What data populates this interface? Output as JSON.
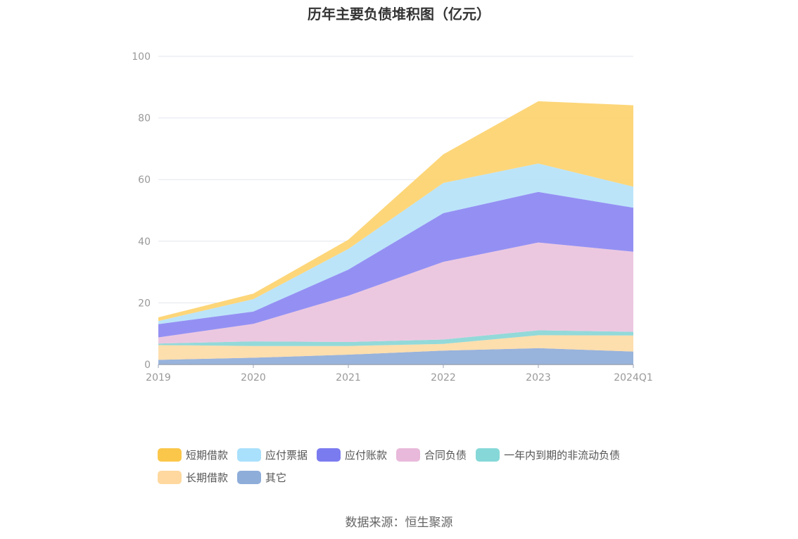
{
  "title": "历年主要负债堆积图（亿元）",
  "source": "数据来源：恒生聚源",
  "chart_data": {
    "type": "area",
    "stacked": true,
    "categories": [
      "2019",
      "2020",
      "2021",
      "2022",
      "2023",
      "2024Q1"
    ],
    "ylim": [
      0,
      100
    ],
    "yticks": [
      0,
      20,
      40,
      60,
      80,
      100
    ],
    "grid": true,
    "legend_position": "bottom",
    "series": [
      {
        "name": "其它",
        "color": "#8fadd9",
        "values": [
          1.5,
          2.2,
          3.2,
          4.5,
          5.3,
          4.2
        ]
      },
      {
        "name": "长期借款",
        "color": "#fddba6",
        "values": [
          4.8,
          3.8,
          2.8,
          2.2,
          4.2,
          5.2
        ]
      },
      {
        "name": "一年内到期的非流动负债",
        "color": "#8ad6d6",
        "values": [
          0.5,
          1.5,
          1.3,
          1.4,
          1.6,
          1.2
        ]
      },
      {
        "name": "合同负债",
        "color": "#eac3dd",
        "values": [
          2.0,
          5.7,
          15.0,
          25.2,
          28.5,
          26.0
        ]
      },
      {
        "name": "应付账款",
        "color": "#8b87f2",
        "values": [
          4.3,
          4.0,
          8.5,
          15.8,
          16.4,
          14.3
        ]
      },
      {
        "name": "应付票据",
        "color": "#b5e2f8",
        "values": [
          1.0,
          4.0,
          6.7,
          9.8,
          9.2,
          6.8
        ]
      },
      {
        "name": "短期借款",
        "color": "#fdd26e",
        "values": [
          1.2,
          1.8,
          3.0,
          9.3,
          20.2,
          26.4
        ]
      }
    ],
    "legend": [
      {
        "name": "短期借款",
        "color": "#fbc74a"
      },
      {
        "name": "应付票据",
        "color": "#a9e0fb"
      },
      {
        "name": "应付账款",
        "color": "#7b7bf0"
      },
      {
        "name": "合同负债",
        "color": "#e8b9da"
      },
      {
        "name": "一年内到期的非流动负债",
        "color": "#86d8d8"
      },
      {
        "name": "长期借款",
        "color": "#fed89e"
      },
      {
        "name": "其它",
        "color": "#8fadd9"
      }
    ]
  }
}
